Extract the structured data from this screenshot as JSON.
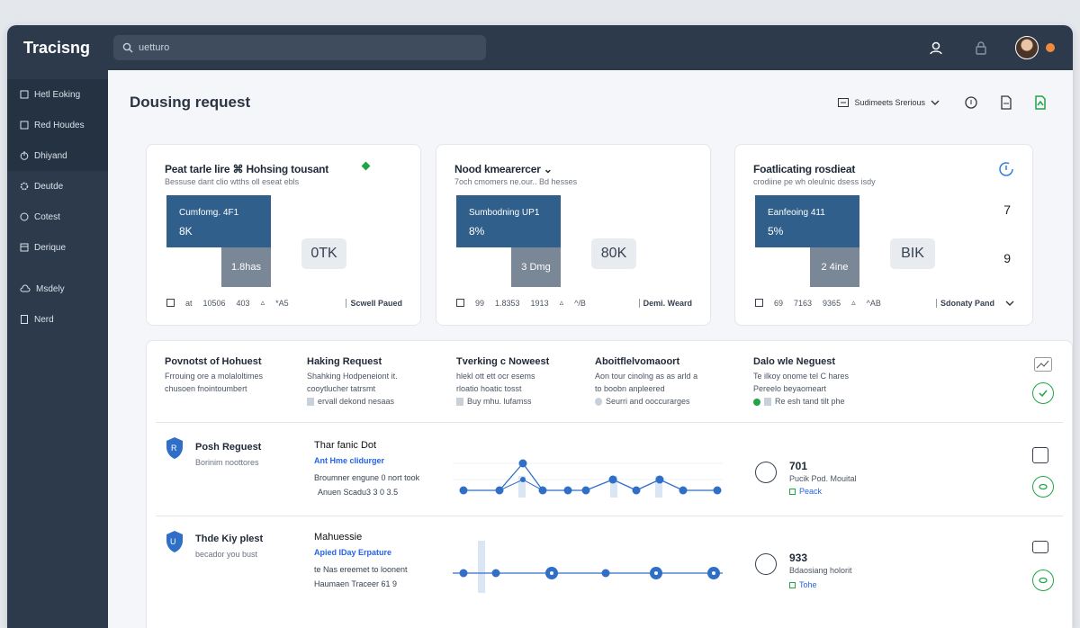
{
  "app": {
    "brand": "Tracisng"
  },
  "search": {
    "value": "uetturo"
  },
  "sidebar": {
    "items": [
      {
        "label": "Hetl Eoking",
        "icon": "list-icon"
      },
      {
        "label": "Red Houdes",
        "icon": "doc-icon"
      },
      {
        "label": "Dhiyand",
        "icon": "power-icon"
      },
      {
        "label": "Deutde",
        "icon": "gear-icon"
      },
      {
        "label": "Cotest",
        "icon": "clock-icon"
      },
      {
        "label": "Derique",
        "icon": "table-icon"
      },
      {
        "label": "Msdely",
        "icon": "cloud-icon"
      },
      {
        "label": "Nerd",
        "icon": "file-icon"
      }
    ]
  },
  "page": {
    "title": "Dousing request",
    "sort_label": "Sudimeets Srerious"
  },
  "cards": [
    {
      "title": "Peat tarle lire  ⌘ Hohsing tousant",
      "subtitle": "Bessuse dant clio wtths oll eseat ebls",
      "block_label": "Cumfomg. 4F1",
      "block_value": "8K",
      "gray_label": "1.8has",
      "pill": "0TK",
      "foot": [
        "at",
        "10506",
        "403",
        "*A5"
      ],
      "action": "Scwell Paued",
      "side": []
    },
    {
      "title": "Nood kmearercer ⌄",
      "subtitle": "7och cmomers ne.our.. Bd hesses",
      "block_label": "Sumbodning UP1",
      "block_value": "8%",
      "gray_label": "3 Dmg",
      "pill": "80K",
      "foot": [
        "99",
        "1.8353",
        "1913",
        "^/B"
      ],
      "action": "Demi. Weard",
      "side": []
    },
    {
      "title": "Foatlicating rosdieat",
      "subtitle": "crodiine pe wh oleulnic dsess isdy",
      "block_label": "Eanfeoing 411",
      "block_value": "5%",
      "gray_label": "2 4ine",
      "pill": "BIK",
      "foot": [
        "69",
        "7163",
        "9365",
        "^AB"
      ],
      "action": "Sdonaty Pand",
      "side": [
        "7",
        "9"
      ]
    }
  ],
  "columns": [
    {
      "title": "Povnotst of Hohuest",
      "lines": [
        "Frrouing ore a molaloltimes",
        "chusoen fnointoumbert"
      ],
      "extra": ""
    },
    {
      "title": "Haking Request",
      "lines": [
        "Shahking Hodpeneiont it.",
        "cooytlucher tatrsmt"
      ],
      "extra": "ervall dekond nesaas"
    },
    {
      "title": "Tverking c Noweest",
      "lines": [
        "hlekl ott ett ocr esems",
        "rloatio hoatic tosst"
      ],
      "extra": "Buy mhu. lufamss"
    },
    {
      "title": "Aboitflelvomaoort",
      "lines": [
        "Aon tour cinolng as as arld a",
        "to boobn anpleered"
      ],
      "extra": "Seurri and ooccurarges"
    },
    {
      "title": "Dalo wle Neguest",
      "lines": [
        "Te ilkoy onome tel C hares",
        "Pereelo beyaomeart"
      ],
      "extra": "Re esh tand tilt phe"
    }
  ],
  "rows": [
    {
      "name": "Posh Reguest",
      "desc": "Borinim noottores",
      "h2": "Thar fanic Dot",
      "link": "Ant Hme clidurger",
      "d1": "Broumner engune 0 nort took",
      "d2": "Anuen Scadu3 3 0 3.5",
      "value": "701",
      "value_sub": "Pucik Pod. Mouital",
      "tag": "Peack"
    },
    {
      "name": "Thde Kiy plest",
      "desc": "becador you bust",
      "h2": "Mahuessie",
      "link": "Apied IDay Erpature",
      "d1": "te Nas ereemet to loonent",
      "d2": "Haumaen Traceer 61 9",
      "value": "933",
      "value_sub": "Bdaosiang holorit",
      "tag": "Tohe"
    }
  ],
  "colors": {
    "sidebar": "#2c3a4b",
    "accent": "#2f5f8a",
    "link": "#2563eb",
    "success": "#22a447"
  }
}
